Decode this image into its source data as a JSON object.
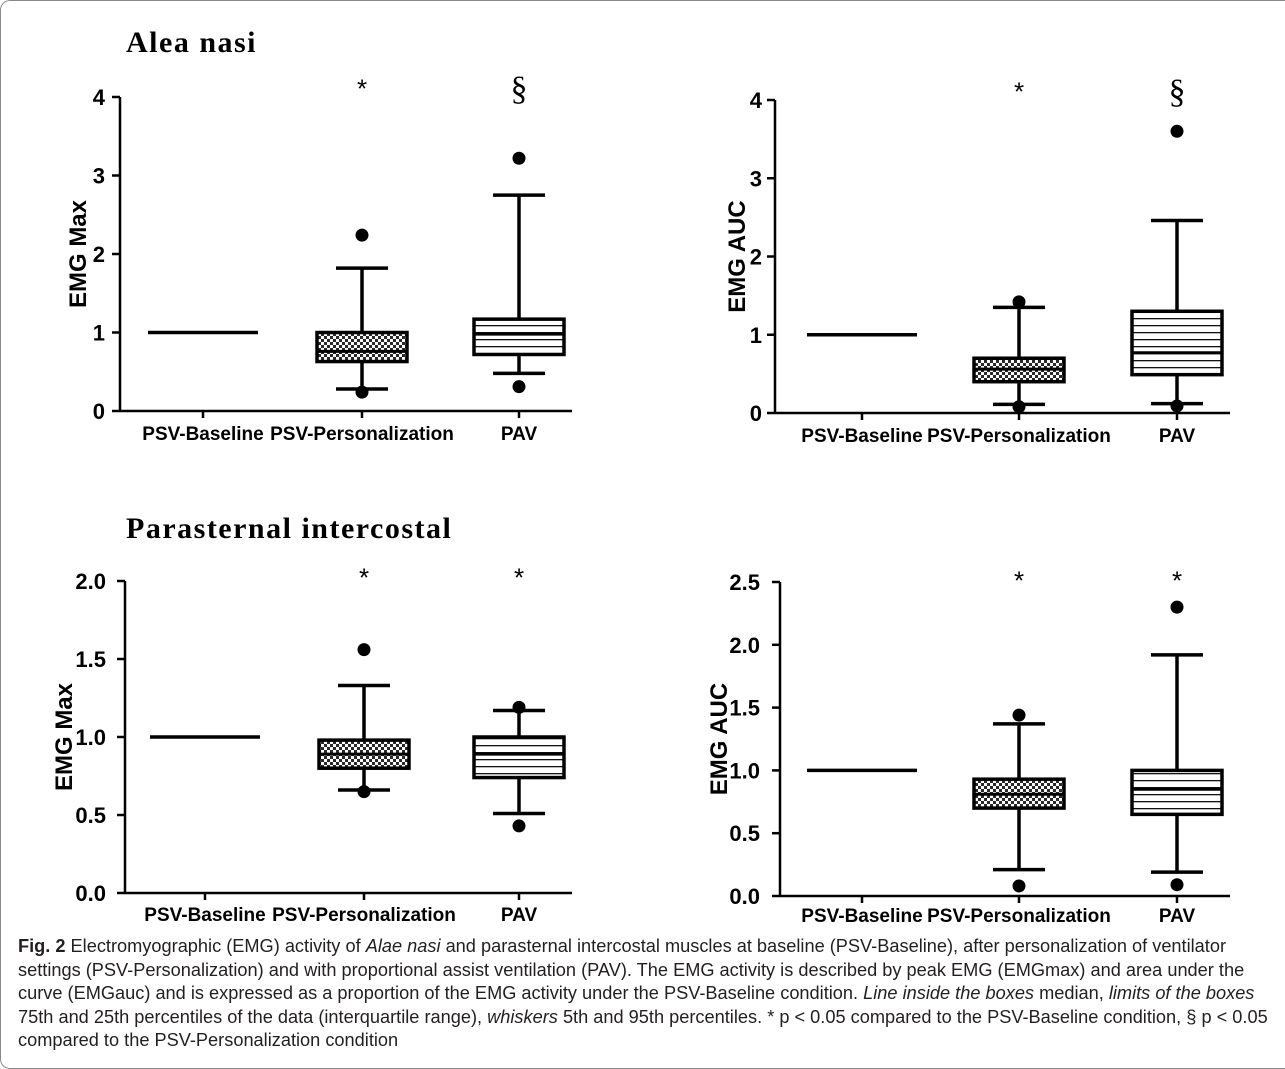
{
  "sections": [
    {
      "title": "Alea nasi"
    },
    {
      "title": "Parasternal intercostal"
    }
  ],
  "chart_data": [
    {
      "type": "box",
      "section": "Alea nasi",
      "ylabel": "EMG Max",
      "ylim": [
        0,
        4
      ],
      "yticks": [
        "0",
        "1",
        "2",
        "3",
        "4"
      ],
      "categories": [
        "PSV-Baseline",
        "PSV-Personalization",
        "PAV"
      ],
      "boxes": [
        {
          "category": "PSV-Baseline",
          "median": 1.0
        },
        {
          "category": "PSV-Personalization",
          "whisker_low": 0.28,
          "q1": 0.63,
          "median": 0.76,
          "q3": 1.0,
          "whisker_high": 1.82,
          "outliers": [
            0.24,
            2.24
          ],
          "pattern": "check"
        },
        {
          "category": "PAV",
          "whisker_low": 0.48,
          "q1": 0.72,
          "median": 0.98,
          "q3": 1.17,
          "whisker_high": 2.75,
          "outliers": [
            0.31,
            3.22
          ],
          "pattern": "lines"
        }
      ],
      "annotations": [
        {
          "category": "PSV-Personalization",
          "text": "*",
          "y": 4.12
        },
        {
          "category": "PAV",
          "text": "§",
          "y": 4.12
        }
      ]
    },
    {
      "type": "box",
      "section": "Alea nasi",
      "ylabel": "EMG AUC",
      "ylim": [
        0,
        4
      ],
      "yticks": [
        "0",
        "1",
        "2",
        "3",
        "4"
      ],
      "categories": [
        "PSV-Baseline",
        "PSV-Personalization",
        "PAV"
      ],
      "boxes": [
        {
          "category": "PSV-Baseline",
          "median": 1.0
        },
        {
          "category": "PSV-Personalization",
          "whisker_low": 0.11,
          "q1": 0.4,
          "median": 0.56,
          "q3": 0.7,
          "whisker_high": 1.35,
          "outliers": [
            0.08,
            1.42
          ],
          "pattern": "check"
        },
        {
          "category": "PAV",
          "whisker_low": 0.12,
          "q1": 0.49,
          "median": 0.77,
          "q3": 1.3,
          "whisker_high": 2.46,
          "outliers": [
            0.09,
            3.6
          ],
          "pattern": "lines"
        }
      ],
      "annotations": [
        {
          "category": "PSV-Personalization",
          "text": "*",
          "y": 4.12
        },
        {
          "category": "PAV",
          "text": "§",
          "y": 4.12
        }
      ]
    },
    {
      "type": "box",
      "section": "Parasternal intercostal",
      "ylabel": "EMG Max",
      "ylim": [
        0,
        2
      ],
      "yticks": [
        "0.0",
        "0.5",
        "1.0",
        "1.5",
        "2.0"
      ],
      "categories": [
        "PSV-Baseline",
        "PSV-Personalization",
        "PAV"
      ],
      "boxes": [
        {
          "category": "PSV-Baseline",
          "median": 1.0
        },
        {
          "category": "PSV-Personalization",
          "whisker_low": 0.66,
          "q1": 0.8,
          "median": 0.89,
          "q3": 0.98,
          "whisker_high": 1.33,
          "outliers": [
            0.65,
            1.56
          ],
          "pattern": "check"
        },
        {
          "category": "PAV",
          "whisker_low": 0.51,
          "q1": 0.74,
          "median": 0.89,
          "q3": 1.0,
          "whisker_high": 1.17,
          "outliers": [
            0.43,
            1.19
          ],
          "pattern": "lines"
        }
      ],
      "annotations": [
        {
          "category": "PSV-Personalization",
          "text": "*",
          "y": 2.03
        },
        {
          "category": "PAV",
          "text": "*",
          "y": 2.03
        }
      ]
    },
    {
      "type": "box",
      "section": "Parasternal intercostal",
      "ylabel": "EMG AUC",
      "ylim": [
        0,
        2.5
      ],
      "yticks": [
        "0.0",
        "0.5",
        "1.0",
        "1.5",
        "2.0",
        "2.5"
      ],
      "categories": [
        "PSV-Baseline",
        "PSV-Personalization",
        "PAV"
      ],
      "boxes": [
        {
          "category": "PSV-Baseline",
          "median": 1.0
        },
        {
          "category": "PSV-Personalization",
          "whisker_low": 0.21,
          "q1": 0.7,
          "median": 0.81,
          "q3": 0.93,
          "whisker_high": 1.37,
          "outliers": [
            0.08,
            1.44
          ],
          "pattern": "check"
        },
        {
          "category": "PAV",
          "whisker_low": 0.19,
          "q1": 0.65,
          "median": 0.85,
          "q3": 1.0,
          "whisker_high": 1.92,
          "outliers": [
            0.09,
            2.3
          ],
          "pattern": "lines"
        }
      ],
      "annotations": [
        {
          "category": "PSV-Personalization",
          "text": "*",
          "y": 2.52
        },
        {
          "category": "PAV",
          "text": "*",
          "y": 2.52
        }
      ]
    }
  ],
  "caption": {
    "label": "Fig. 2",
    "segments": [
      {
        "text": "  Electromyographic (EMG) activity of ",
        "italic": false
      },
      {
        "text": "Alae nasi",
        "italic": true
      },
      {
        "text": " and parasternal intercostal muscles at baseline (PSV-Baseline), after personalization of ventilator settings (PSV-Personalization) and with proportional assist ventilation (PAV). The EMG activity is described by peak EMG (EMGmax) and area under the curve (EMGauc) and is expressed as a proportion of the EMG activity under the PSV-Baseline condition. ",
        "italic": false
      },
      {
        "text": "Line inside the boxes",
        "italic": true
      },
      {
        "text": " median, ",
        "italic": false
      },
      {
        "text": "limits of the boxes",
        "italic": true
      },
      {
        "text": " 75th and 25th percentiles of the data (interquartile range), ",
        "italic": false
      },
      {
        "text": "whiskers",
        "italic": true
      },
      {
        "text": " 5th and 95th percentiles. * p < 0.05 compared to the PSV-Baseline condition, § p < 0.05 compared to the PSV-Personalization condition",
        "italic": false
      }
    ]
  }
}
